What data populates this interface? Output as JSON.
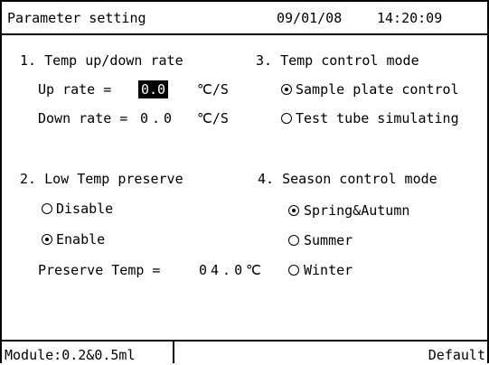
{
  "header": {
    "title": "Parameter setting",
    "date": "09/01/08",
    "time": "14:20:09"
  },
  "sections": [
    {
      "title": "1. Temp up/down rate",
      "fields": [
        {
          "label": "Up rate =",
          "value": "0.0",
          "unit": "℃/S",
          "highlighted": true
        },
        {
          "label": "Down rate =",
          "value": "0.0",
          "unit": "℃/S"
        }
      ]
    },
    {
      "title": "3. Temp control mode",
      "options": [
        "Sample plate control",
        "Test tube simulating"
      ],
      "selected": 0
    },
    {
      "title": "2. Low Temp preserve",
      "options": [
        "Disable",
        "Enable"
      ],
      "selected": 1,
      "fields": [
        {
          "label": "Preserve Temp =",
          "value": "04.0",
          "unit": "℃"
        }
      ]
    },
    {
      "title": "4. Season control mode",
      "options": [
        "Spring&Autumn",
        "Summer",
        "Winter"
      ],
      "selected": 0
    }
  ],
  "footer": {
    "module": "Module:0.2&0.5ml",
    "default": "Default"
  }
}
